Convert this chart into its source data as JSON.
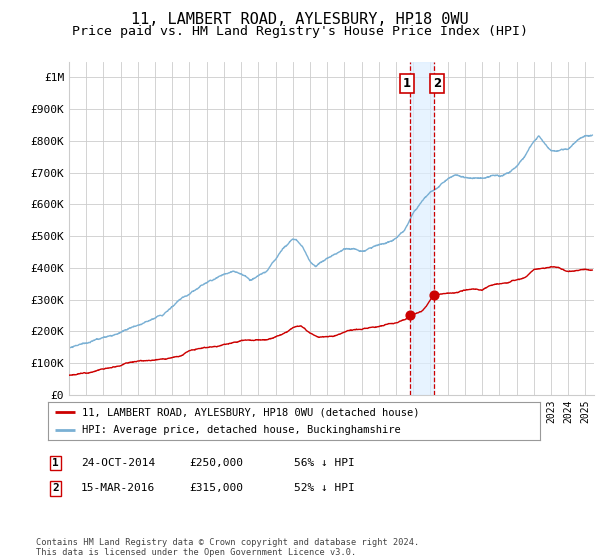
{
  "title": "11, LAMBERT ROAD, AYLESBURY, HP18 0WU",
  "subtitle": "Price paid vs. HM Land Registry's House Price Index (HPI)",
  "title_fontsize": 11,
  "subtitle_fontsize": 9.5,
  "ylabel_ticks": [
    "£0",
    "£100K",
    "£200K",
    "£300K",
    "£400K",
    "£500K",
    "£600K",
    "£700K",
    "£800K",
    "£900K",
    "£1M"
  ],
  "ytick_vals": [
    0,
    100000,
    200000,
    300000,
    400000,
    500000,
    600000,
    700000,
    800000,
    900000,
    1000000
  ],
  "ylim": [
    0,
    1050000
  ],
  "xlim_start": 1995.0,
  "xlim_end": 2025.5,
  "background_color": "#ffffff",
  "grid_color": "#cccccc",
  "hpi_color": "#7ab0d4",
  "hpi_fill_color": "#ddeeff",
  "price_color": "#cc0000",
  "purchase1_date": 2014.81,
  "purchase1_price": 250000,
  "purchase2_date": 2016.21,
  "purchase2_price": 315000,
  "vspan_start": 2014.81,
  "vspan_end": 2016.21,
  "legend_label_price": "11, LAMBERT ROAD, AYLESBURY, HP18 0WU (detached house)",
  "legend_label_hpi": "HPI: Average price, detached house, Buckinghamshire",
  "footnote": "Contains HM Land Registry data © Crown copyright and database right 2024.\nThis data is licensed under the Open Government Licence v3.0.",
  "table_row1": [
    "1",
    "24-OCT-2014",
    "£250,000",
    "56% ↓ HPI"
  ],
  "table_row2": [
    "2",
    "15-MAR-2016",
    "£315,000",
    "52% ↓ HPI"
  ],
  "hpi_anchors": [
    [
      1995.0,
      148000
    ],
    [
      1996.0,
      160000
    ],
    [
      1997.0,
      175000
    ],
    [
      1998.0,
      192000
    ],
    [
      1999.0,
      210000
    ],
    [
      2000.0,
      235000
    ],
    [
      2000.5,
      250000
    ],
    [
      2001.0,
      275000
    ],
    [
      2002.0,
      310000
    ],
    [
      2003.0,
      350000
    ],
    [
      2003.5,
      368000
    ],
    [
      2004.0,
      385000
    ],
    [
      2004.5,
      395000
    ],
    [
      2005.0,
      388000
    ],
    [
      2005.5,
      370000
    ],
    [
      2006.0,
      382000
    ],
    [
      2006.5,
      395000
    ],
    [
      2007.0,
      430000
    ],
    [
      2007.5,
      465000
    ],
    [
      2008.0,
      487000
    ],
    [
      2008.2,
      490000
    ],
    [
      2008.6,
      465000
    ],
    [
      2009.0,
      425000
    ],
    [
      2009.3,
      408000
    ],
    [
      2009.6,
      420000
    ],
    [
      2010.0,
      430000
    ],
    [
      2010.5,
      440000
    ],
    [
      2011.0,
      455000
    ],
    [
      2011.5,
      458000
    ],
    [
      2012.0,
      452000
    ],
    [
      2012.5,
      465000
    ],
    [
      2013.0,
      478000
    ],
    [
      2013.5,
      488000
    ],
    [
      2014.0,
      508000
    ],
    [
      2014.5,
      535000
    ],
    [
      2014.81,
      565000
    ],
    [
      2015.0,
      585000
    ],
    [
      2015.5,
      622000
    ],
    [
      2016.0,
      652000
    ],
    [
      2016.21,
      660000
    ],
    [
      2016.5,
      672000
    ],
    [
      2017.0,
      700000
    ],
    [
      2017.5,
      712000
    ],
    [
      2018.0,
      702000
    ],
    [
      2018.5,
      696000
    ],
    [
      2019.0,
      700000
    ],
    [
      2019.5,
      706000
    ],
    [
      2020.0,
      702000
    ],
    [
      2020.5,
      712000
    ],
    [
      2021.0,
      735000
    ],
    [
      2021.5,
      772000
    ],
    [
      2022.0,
      822000
    ],
    [
      2022.3,
      842000
    ],
    [
      2022.8,
      802000
    ],
    [
      2023.0,
      792000
    ],
    [
      2023.5,
      790000
    ],
    [
      2024.0,
      798000
    ],
    [
      2024.5,
      820000
    ],
    [
      2025.0,
      838000
    ],
    [
      2025.4,
      840000
    ]
  ],
  "red_anchors": [
    [
      1995.0,
      62000
    ],
    [
      1996.0,
      70000
    ],
    [
      1997.0,
      80000
    ],
    [
      1998.0,
      92000
    ],
    [
      1999.0,
      102000
    ],
    [
      2000.0,
      108000
    ],
    [
      2001.0,
      115000
    ],
    [
      2001.5,
      120000
    ],
    [
      2002.0,
      138000
    ],
    [
      2003.0,
      152000
    ],
    [
      2004.0,
      162000
    ],
    [
      2005.0,
      172000
    ],
    [
      2006.0,
      174000
    ],
    [
      2007.0,
      183000
    ],
    [
      2007.5,
      193000
    ],
    [
      2008.0,
      212000
    ],
    [
      2008.5,
      218000
    ],
    [
      2009.0,
      198000
    ],
    [
      2009.5,
      183000
    ],
    [
      2010.0,
      188000
    ],
    [
      2010.5,
      193000
    ],
    [
      2011.0,
      198000
    ],
    [
      2011.5,
      208000
    ],
    [
      2012.0,
      208000
    ],
    [
      2012.5,
      213000
    ],
    [
      2013.0,
      218000
    ],
    [
      2013.5,
      223000
    ],
    [
      2014.0,
      228000
    ],
    [
      2014.5,
      236000
    ],
    [
      2014.81,
      250000
    ],
    [
      2015.0,
      256000
    ],
    [
      2015.5,
      268000
    ],
    [
      2016.21,
      315000
    ],
    [
      2016.5,
      316000
    ],
    [
      2017.0,
      318000
    ],
    [
      2017.5,
      323000
    ],
    [
      2018.0,
      328000
    ],
    [
      2018.5,
      333000
    ],
    [
      2019.0,
      328000
    ],
    [
      2019.5,
      338000
    ],
    [
      2020.0,
      343000
    ],
    [
      2020.5,
      346000
    ],
    [
      2021.0,
      353000
    ],
    [
      2021.5,
      358000
    ],
    [
      2022.0,
      378000
    ],
    [
      2022.5,
      388000
    ],
    [
      2023.0,
      393000
    ],
    [
      2023.5,
      388000
    ],
    [
      2024.0,
      378000
    ],
    [
      2024.5,
      383000
    ],
    [
      2025.0,
      388000
    ],
    [
      2025.4,
      386000
    ]
  ]
}
